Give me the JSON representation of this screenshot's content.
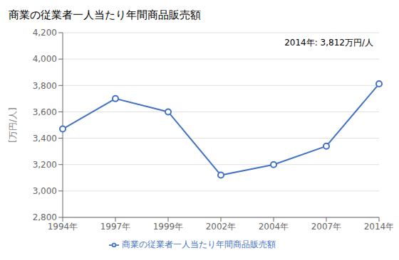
{
  "chart_data": {
    "type": "line",
    "title": "商業の従業者一人当たり年間商品販売額",
    "ylabel": "[万円/人]",
    "annotation": "2014年: 3,812万円/人",
    "categories": [
      "1994年",
      "1997年",
      "1999年",
      "2002年",
      "2004年",
      "2007年",
      "2014年"
    ],
    "series": [
      {
        "name": "商業の従業者一人当たり年間商品販売額",
        "color": "#4472C4",
        "values": [
          3470,
          3700,
          3600,
          3120,
          3200,
          3340,
          3812
        ],
        "marker": "circle",
        "line_style": "solid"
      }
    ],
    "ylim": [
      2800,
      4200
    ],
    "yticks": [
      {
        "value": 2800,
        "label": "2,800"
      },
      {
        "value": 3000,
        "label": "3,000"
      },
      {
        "value": 3200,
        "label": "3,200"
      },
      {
        "value": 3400,
        "label": "3,400"
      },
      {
        "value": 3600,
        "label": "3,600"
      },
      {
        "value": 3800,
        "label": "3,800"
      },
      {
        "value": 4000,
        "label": "4,000"
      },
      {
        "value": 4200,
        "label": "4,200"
      }
    ],
    "grid": true,
    "legend": "bottom"
  }
}
